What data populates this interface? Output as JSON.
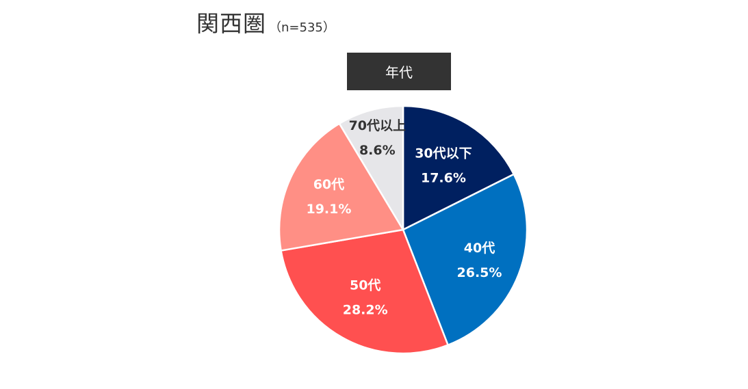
{
  "title": {
    "main": "関西圏",
    "sample": "（n=535）"
  },
  "category": "年代",
  "chart_data": {
    "type": "pie",
    "title": "関西圏",
    "subtitle": "（n=535）",
    "category_label": "年代",
    "start": "12 o'clock",
    "direction": "clockwise",
    "slices": [
      {
        "label": "30代以下",
        "value": 17.6,
        "value_label": "17.6%",
        "color": "#002060",
        "text_color": "#ffffff"
      },
      {
        "label": "40代",
        "value": 26.5,
        "value_label": "26.5%",
        "color": "#0070C0",
        "text_color": "#ffffff"
      },
      {
        "label": "50代",
        "value": 28.2,
        "value_label": "28.2%",
        "color": "#FF5050",
        "text_color": "#ffffff"
      },
      {
        "label": "60代",
        "value": 19.1,
        "value_label": "19.1%",
        "color": "#FF8F85",
        "text_color": "#ffffff"
      },
      {
        "label": "70代以上",
        "value": 8.6,
        "value_label": "8.6%",
        "color": "#E6E6E9",
        "text_color": "#333333"
      }
    ]
  }
}
